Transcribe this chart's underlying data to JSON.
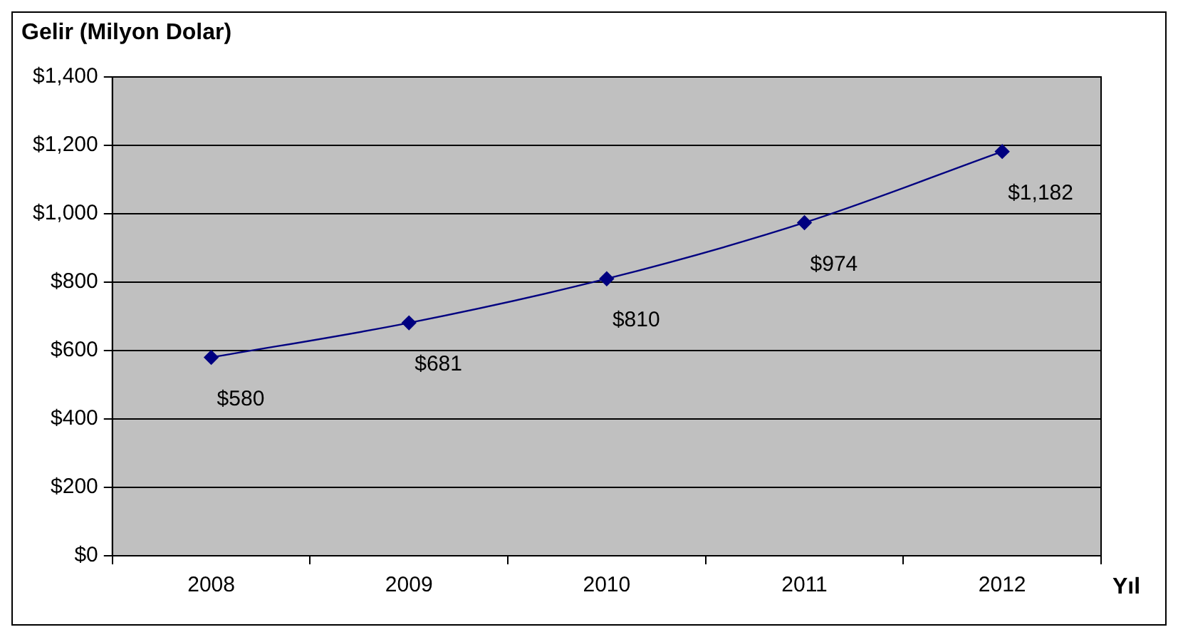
{
  "chart_data": {
    "type": "line",
    "ylabel": "Gelir (Milyon Dolar)",
    "xlabel": "Yıl",
    "categories": [
      "2008",
      "2009",
      "2010",
      "2011",
      "2012"
    ],
    "series": [
      {
        "color": "#000080",
        "values": [
          580,
          681,
          810,
          974,
          1182
        ],
        "value_labels": [
          "$580",
          "$681",
          "$810",
          "$974",
          "$1,182"
        ]
      }
    ],
    "ylim": [
      0,
      1400
    ],
    "yticks": [
      {
        "value": 0,
        "label": "$0"
      },
      {
        "value": 200,
        "label": "$200"
      },
      {
        "value": 400,
        "label": "$400"
      },
      {
        "value": 600,
        "label": "$600"
      },
      {
        "value": 800,
        "label": "$800"
      },
      {
        "value": 1000,
        "label": "$1,000"
      },
      {
        "value": 1200,
        "label": "$1,200"
      },
      {
        "value": 1400,
        "label": "$1,400"
      }
    ],
    "grid": "y",
    "legend": false,
    "marker": "diamond",
    "line_style": "solid"
  }
}
